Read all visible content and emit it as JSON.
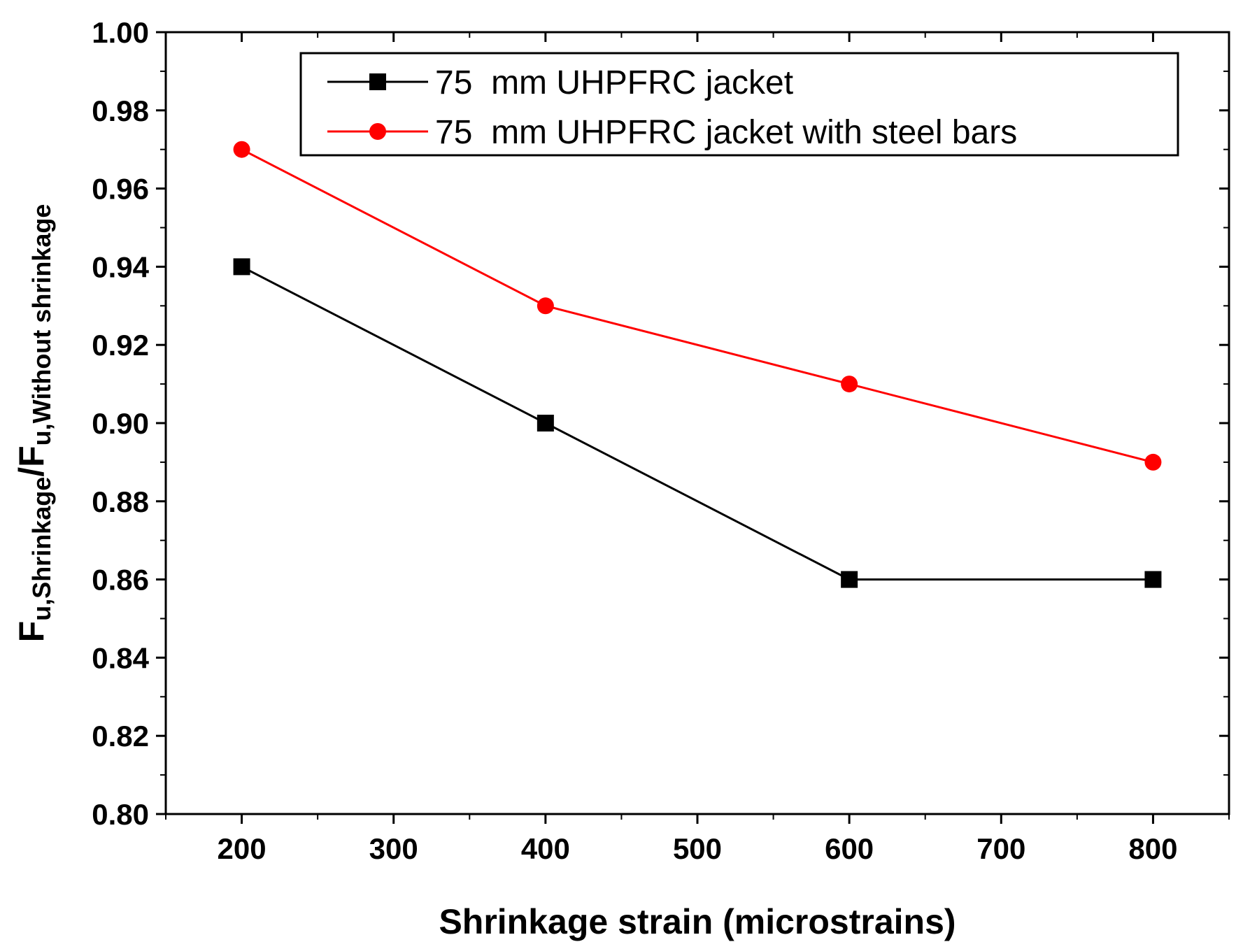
{
  "chart_data": {
    "type": "line",
    "xlabel": "Shrinkage strain (microstrains)",
    "ylabel": {
      "main": "F",
      "sub1": "u,Shrinkage",
      "slash": "/F",
      "sub2": "u,Without shrinkage"
    },
    "xlim": [
      150,
      850
    ],
    "ylim": [
      0.8,
      1.0
    ],
    "x_ticks": [
      200,
      300,
      400,
      500,
      600,
      700,
      800
    ],
    "x_tick_labels": [
      "200",
      "300",
      "400",
      "500",
      "600",
      "700",
      "800"
    ],
    "y_ticks": [
      0.8,
      0.82,
      0.84,
      0.86,
      0.88,
      0.9,
      0.92,
      0.94,
      0.96,
      0.98,
      1.0
    ],
    "y_tick_labels": [
      "0.80",
      "0.82",
      "0.84",
      "0.86",
      "0.88",
      "0.90",
      "0.92",
      "0.94",
      "0.96",
      "0.98",
      "1.00"
    ],
    "grid": false,
    "legend_position": "top-right",
    "series": [
      {
        "name": "75  mm UHPFRC jacket",
        "color": "#000000",
        "marker": "square",
        "x": [
          200,
          400,
          600,
          800
        ],
        "y": [
          0.94,
          0.9,
          0.86,
          0.86
        ]
      },
      {
        "name": "75  mm UHPFRC jacket with steel bars",
        "color": "#ff0000",
        "marker": "circle",
        "x": [
          200,
          400,
          600,
          800
        ],
        "y": [
          0.97,
          0.93,
          0.91,
          0.89
        ]
      }
    ]
  }
}
